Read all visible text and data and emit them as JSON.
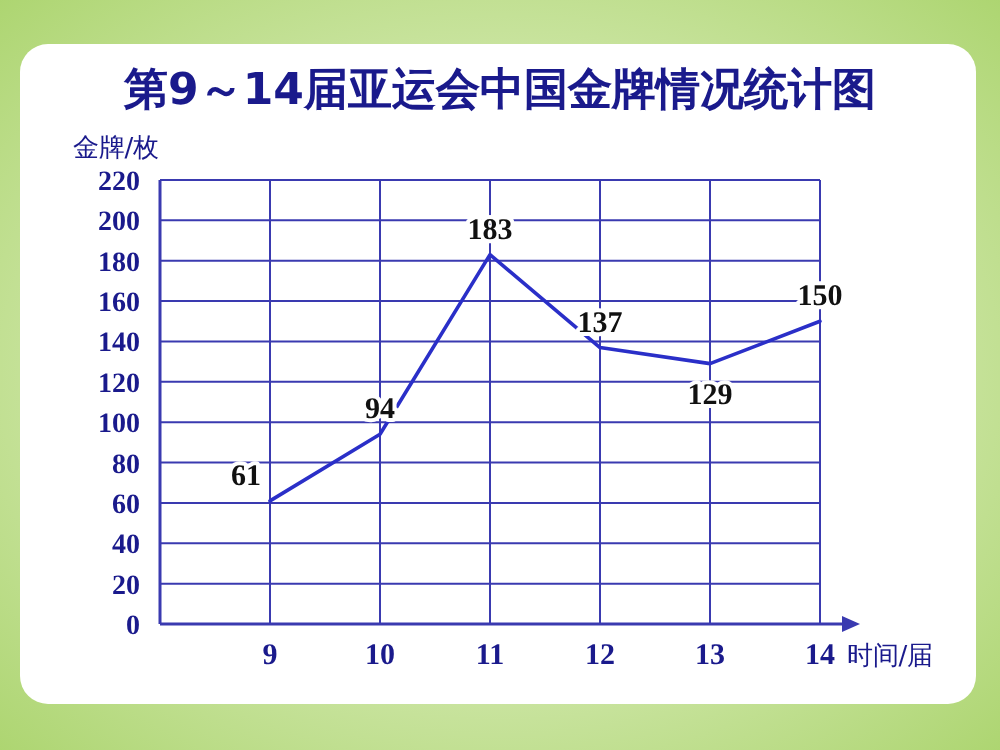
{
  "chart_data": {
    "type": "line",
    "title": "第9～14届亚运会中国金牌情况统计图",
    "ylabel": "金牌/枚",
    "xlabel": "时间/届",
    "categories": [
      "9",
      "10",
      "11",
      "12",
      "13",
      "14"
    ],
    "values": [
      61,
      94,
      183,
      137,
      129,
      150
    ],
    "color": "#2a2fc8",
    "ylim": [
      0,
      220
    ],
    "yticks": [
      0,
      20,
      40,
      60,
      80,
      100,
      120,
      140,
      160,
      180,
      200,
      220
    ],
    "grid": true,
    "data_labels": true
  }
}
